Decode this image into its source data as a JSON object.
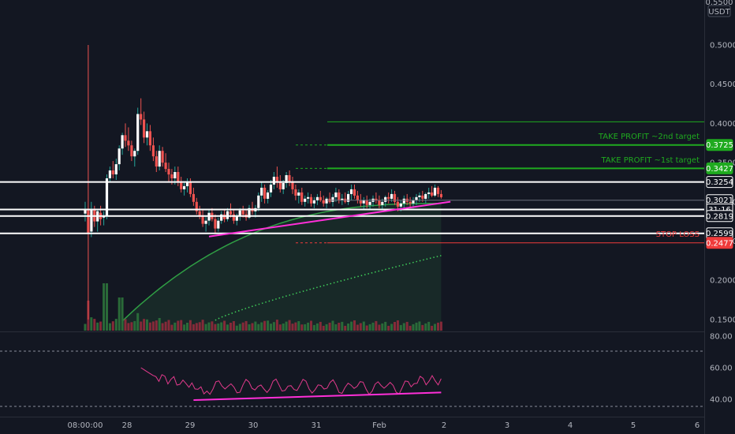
{
  "colors": {
    "background": "#131722",
    "up": "#26a69a",
    "down": "#ef5350",
    "axis_text": "#b2b5be",
    "level_line": "#ffffff",
    "trendline": "#ff2fd8",
    "take_profit": "#1faa1f",
    "stop_loss": "#ef3b3b",
    "ma_line": "#2f9e44",
    "rsi": "#e23a8c"
  },
  "header": {
    "currency": "USDT",
    "top_tick": "0.5500"
  },
  "price_axis": {
    "ticks": [
      "0.5000",
      "0.4500",
      "0.4000",
      "0.3500",
      "0.3000",
      "0.2500",
      "0.2000",
      "0.1500"
    ],
    "tick_values": [
      0.5,
      0.45,
      0.4,
      0.35,
      0.3,
      0.25,
      0.2,
      0.15
    ]
  },
  "price_tags": [
    {
      "label": "0.3725",
      "value": 0.3725,
      "kind": "green"
    },
    {
      "label": "0.3427",
      "value": 0.3427,
      "kind": "green"
    },
    {
      "label": "0.3254",
      "value": 0.3254,
      "kind": "white"
    },
    {
      "label": "0.3021",
      "value": 0.3021,
      "kind": "white"
    },
    {
      "label": "31:16",
      "value": 0.2902,
      "kind": "white"
    },
    {
      "label": "0.2819",
      "value": 0.2819,
      "kind": "white"
    },
    {
      "label": "0.2599",
      "value": 0.2599,
      "kind": "white"
    },
    {
      "label": "0.2477",
      "value": 0.2477,
      "kind": "red"
    }
  ],
  "annotations": {
    "take_profit_2": "TAKE PROFIT ~2nd target",
    "take_profit_1": "TAKE PROFIT ~1st target",
    "stop_loss": "STOP LOSS"
  },
  "rsi_axis": {
    "ticks": [
      "80.00",
      "60.00",
      "40.00"
    ],
    "tick_values": [
      80,
      60,
      40
    ]
  },
  "time_axis": [
    "08:00:00",
    "28",
    "29",
    "30",
    "31",
    "Feb",
    "2",
    "3",
    "4",
    "5",
    "6"
  ],
  "chart_data": {
    "type": "candlestick",
    "y_range": [
      0.135,
      0.555
    ],
    "x_range_days": [
      0,
      10
    ],
    "levels": {
      "white_horizontal": [
        0.3254,
        0.2902,
        0.2819,
        0.2599
      ],
      "take_profit": [
        0.402,
        0.3725,
        0.3427
      ],
      "stop_loss": 0.2477
    },
    "trendline": {
      "from": [
        2.0,
        0.2558
      ],
      "to": [
        5.9,
        0.3002
      ]
    },
    "candles": [
      [
        0.0,
        0.285,
        0.3,
        0.275,
        0.29
      ],
      [
        0.05,
        0.29,
        0.5,
        0.15,
        0.26
      ],
      [
        0.1,
        0.262,
        0.3,
        0.255,
        0.29
      ],
      [
        0.15,
        0.29,
        0.295,
        0.268,
        0.275
      ],
      [
        0.2,
        0.275,
        0.29,
        0.262,
        0.288
      ],
      [
        0.25,
        0.286,
        0.295,
        0.27,
        0.278
      ],
      [
        0.3,
        0.28,
        0.288,
        0.27,
        0.282
      ],
      [
        0.35,
        0.282,
        0.335,
        0.278,
        0.33
      ],
      [
        0.4,
        0.33,
        0.345,
        0.325,
        0.34
      ],
      [
        0.45,
        0.34,
        0.352,
        0.33,
        0.335
      ],
      [
        0.5,
        0.335,
        0.355,
        0.328,
        0.348
      ],
      [
        0.55,
        0.348,
        0.372,
        0.34,
        0.368
      ],
      [
        0.6,
        0.368,
        0.388,
        0.36,
        0.385
      ],
      [
        0.65,
        0.385,
        0.4,
        0.37,
        0.378
      ],
      [
        0.7,
        0.378,
        0.395,
        0.365,
        0.372
      ],
      [
        0.75,
        0.372,
        0.378,
        0.352,
        0.358
      ],
      [
        0.8,
        0.358,
        0.368,
        0.345,
        0.365
      ],
      [
        0.85,
        0.365,
        0.42,
        0.36,
        0.412
      ],
      [
        0.9,
        0.412,
        0.432,
        0.398,
        0.405
      ],
      [
        0.95,
        0.405,
        0.415,
        0.375,
        0.382
      ],
      [
        1.0,
        0.382,
        0.4,
        0.372,
        0.39
      ],
      [
        1.05,
        0.39,
        0.398,
        0.365,
        0.372
      ],
      [
        1.1,
        0.372,
        0.382,
        0.352,
        0.358
      ],
      [
        1.15,
        0.358,
        0.365,
        0.338,
        0.345
      ],
      [
        1.2,
        0.345,
        0.372,
        0.34,
        0.365
      ],
      [
        1.25,
        0.365,
        0.37,
        0.345,
        0.35
      ],
      [
        1.3,
        0.35,
        0.362,
        0.338,
        0.342
      ],
      [
        1.35,
        0.342,
        0.35,
        0.325,
        0.335
      ],
      [
        1.4,
        0.335,
        0.342,
        0.322,
        0.33
      ],
      [
        1.45,
        0.33,
        0.345,
        0.322,
        0.338
      ],
      [
        1.5,
        0.338,
        0.345,
        0.32,
        0.325
      ],
      [
        1.55,
        0.325,
        0.332,
        0.312,
        0.316
      ],
      [
        1.6,
        0.316,
        0.325,
        0.308,
        0.32
      ],
      [
        1.65,
        0.32,
        0.33,
        0.312,
        0.326
      ],
      [
        1.7,
        0.326,
        0.33,
        0.306,
        0.31
      ],
      [
        1.75,
        0.31,
        0.318,
        0.295,
        0.3
      ],
      [
        1.8,
        0.3,
        0.305,
        0.284,
        0.288
      ],
      [
        1.85,
        0.288,
        0.295,
        0.278,
        0.282
      ],
      [
        1.9,
        0.282,
        0.29,
        0.268,
        0.272
      ],
      [
        1.95,
        0.272,
        0.282,
        0.262,
        0.276
      ],
      [
        2.0,
        0.276,
        0.29,
        0.27,
        0.286
      ],
      [
        2.05,
        0.286,
        0.292,
        0.275,
        0.278
      ],
      [
        2.1,
        0.278,
        0.284,
        0.26,
        0.266
      ],
      [
        2.15,
        0.266,
        0.28,
        0.262,
        0.276
      ],
      [
        2.2,
        0.276,
        0.288,
        0.272,
        0.284
      ],
      [
        2.25,
        0.284,
        0.29,
        0.274,
        0.278
      ],
      [
        2.3,
        0.278,
        0.292,
        0.275,
        0.288
      ],
      [
        2.35,
        0.288,
        0.298,
        0.28,
        0.284
      ],
      [
        2.4,
        0.284,
        0.29,
        0.272,
        0.276
      ],
      [
        2.45,
        0.276,
        0.285,
        0.27,
        0.282
      ],
      [
        2.5,
        0.282,
        0.292,
        0.276,
        0.289
      ],
      [
        2.55,
        0.289,
        0.295,
        0.28,
        0.284
      ],
      [
        2.6,
        0.284,
        0.29,
        0.276,
        0.28
      ],
      [
        2.65,
        0.28,
        0.296,
        0.278,
        0.292
      ],
      [
        2.7,
        0.292,
        0.3,
        0.284,
        0.288
      ],
      [
        2.75,
        0.288,
        0.296,
        0.28,
        0.292
      ],
      [
        2.8,
        0.292,
        0.312,
        0.288,
        0.308
      ],
      [
        2.85,
        0.308,
        0.325,
        0.3,
        0.318
      ],
      [
        2.9,
        0.318,
        0.322,
        0.298,
        0.304
      ],
      [
        2.95,
        0.304,
        0.315,
        0.298,
        0.312
      ],
      [
        3.0,
        0.312,
        0.328,
        0.306,
        0.322
      ],
      [
        3.05,
        0.322,
        0.338,
        0.316,
        0.332
      ],
      [
        3.1,
        0.332,
        0.345,
        0.318,
        0.326
      ],
      [
        3.15,
        0.326,
        0.334,
        0.312,
        0.316
      ],
      [
        3.2,
        0.316,
        0.328,
        0.31,
        0.324
      ],
      [
        3.25,
        0.324,
        0.338,
        0.318,
        0.334
      ],
      [
        3.3,
        0.334,
        0.34,
        0.32,
        0.326
      ],
      [
        3.35,
        0.326,
        0.332,
        0.31,
        0.316
      ],
      [
        3.4,
        0.316,
        0.322,
        0.302,
        0.308
      ],
      [
        3.45,
        0.308,
        0.316,
        0.298,
        0.312
      ],
      [
        3.5,
        0.312,
        0.318,
        0.296,
        0.3
      ],
      [
        3.55,
        0.3,
        0.308,
        0.294,
        0.304
      ],
      [
        3.6,
        0.304,
        0.312,
        0.298,
        0.306
      ],
      [
        3.65,
        0.306,
        0.31,
        0.294,
        0.298
      ],
      [
        3.7,
        0.298,
        0.306,
        0.292,
        0.302
      ],
      [
        3.75,
        0.302,
        0.31,
        0.296,
        0.306
      ],
      [
        3.8,
        0.306,
        0.314,
        0.3,
        0.302
      ],
      [
        3.85,
        0.302,
        0.308,
        0.294,
        0.298
      ],
      [
        3.9,
        0.298,
        0.306,
        0.292,
        0.304
      ],
      [
        3.95,
        0.304,
        0.312,
        0.298,
        0.3
      ],
      [
        4.0,
        0.3,
        0.31,
        0.294,
        0.306
      ],
      [
        4.05,
        0.306,
        0.318,
        0.3,
        0.312
      ],
      [
        4.1,
        0.312,
        0.316,
        0.298,
        0.302
      ],
      [
        4.15,
        0.302,
        0.31,
        0.296,
        0.304
      ],
      [
        4.2,
        0.304,
        0.312,
        0.298,
        0.3
      ],
      [
        4.25,
        0.3,
        0.314,
        0.296,
        0.31
      ],
      [
        4.3,
        0.31,
        0.322,
        0.302,
        0.316
      ],
      [
        4.35,
        0.316,
        0.322,
        0.304,
        0.308
      ],
      [
        4.4,
        0.308,
        0.314,
        0.298,
        0.302
      ],
      [
        4.45,
        0.302,
        0.31,
        0.294,
        0.298
      ],
      [
        4.5,
        0.298,
        0.306,
        0.29,
        0.302
      ],
      [
        4.55,
        0.302,
        0.308,
        0.292,
        0.296
      ],
      [
        4.6,
        0.296,
        0.304,
        0.29,
        0.3
      ],
      [
        4.65,
        0.3,
        0.308,
        0.294,
        0.304
      ],
      [
        4.7,
        0.304,
        0.312,
        0.298,
        0.302
      ],
      [
        4.75,
        0.302,
        0.308,
        0.292,
        0.296
      ],
      [
        4.8,
        0.296,
        0.304,
        0.29,
        0.3
      ],
      [
        4.85,
        0.3,
        0.308,
        0.294,
        0.306
      ],
      [
        4.9,
        0.306,
        0.312,
        0.298,
        0.304
      ],
      [
        4.95,
        0.304,
        0.316,
        0.3,
        0.31
      ],
      [
        5.0,
        0.31,
        0.314,
        0.296,
        0.3
      ],
      [
        5.05,
        0.3,
        0.306,
        0.288,
        0.294
      ],
      [
        5.1,
        0.294,
        0.302,
        0.288,
        0.298
      ],
      [
        5.15,
        0.298,
        0.308,
        0.292,
        0.304
      ],
      [
        5.2,
        0.304,
        0.31,
        0.296,
        0.3
      ],
      [
        5.25,
        0.3,
        0.306,
        0.292,
        0.298
      ],
      [
        5.3,
        0.298,
        0.306,
        0.292,
        0.302
      ],
      [
        5.35,
        0.302,
        0.31,
        0.296,
        0.306
      ],
      [
        5.4,
        0.306,
        0.312,
        0.3,
        0.308
      ],
      [
        5.45,
        0.308,
        0.314,
        0.3,
        0.304
      ],
      [
        5.5,
        0.304,
        0.312,
        0.298,
        0.31
      ],
      [
        5.55,
        0.31,
        0.318,
        0.304,
        0.312
      ],
      [
        5.6,
        0.312,
        0.32,
        0.306,
        0.308
      ],
      [
        5.65,
        0.308,
        0.322,
        0.306,
        0.318
      ],
      [
        5.7,
        0.318,
        0.32,
        0.306,
        0.31
      ],
      [
        5.75,
        0.31,
        0.315,
        0.304,
        0.306
      ]
    ]
  }
}
